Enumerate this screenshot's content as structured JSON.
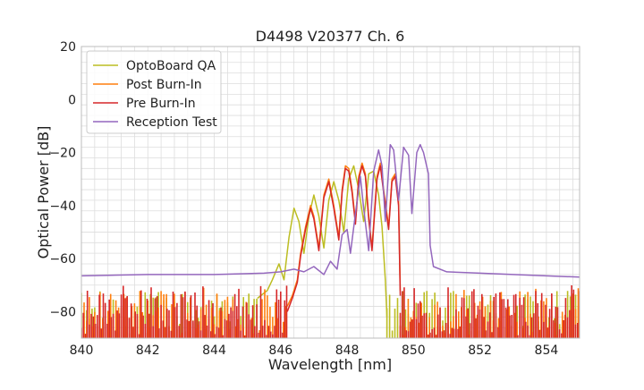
{
  "chart_data": {
    "type": "line",
    "title": "D4498 V20377 Ch. 6",
    "xlabel": "Wavelength [nm]",
    "ylabel": "Optical Power [dB]",
    "xlim": [
      840,
      855
    ],
    "ylim": [
      -90,
      20
    ],
    "grid": true,
    "legend_position": "top-left",
    "x_ticks": [
      840,
      842,
      844,
      846,
      848,
      850,
      852,
      854
    ],
    "x_tick_labels": [
      "840",
      "842",
      "844",
      "846",
      "848",
      "850",
      "852",
      "854"
    ],
    "y_ticks": [
      -80,
      -60,
      -40,
      -20,
      0,
      20
    ],
    "y_tick_labels": [
      "−80",
      "−60",
      "−40",
      "−20",
      "0",
      "20"
    ],
    "x_minor_step": 0.4,
    "y_minor_step": 4,
    "noise_floor_low": -90,
    "series": [
      {
        "name": "OptoBoard QA",
        "color": "#bcbd22",
        "noise": {
          "ranges": [
            [
              840.0,
              845.3
            ],
            [
              849.2,
              855.0
            ]
          ],
          "step": 0.08,
          "min": -89,
          "max": -72
        },
        "x": [
          845.3,
          845.6,
          845.75,
          845.95,
          846.1,
          846.25,
          846.4,
          846.55,
          846.7,
          846.85,
          847.0,
          847.15,
          847.3,
          847.45,
          847.6,
          847.75,
          847.9,
          848.05,
          848.2,
          848.35,
          848.5,
          848.65,
          848.8,
          848.95,
          849.05,
          849.15,
          849.2
        ],
        "values": [
          -75,
          -72,
          -68,
          -62,
          -68,
          -52,
          -41,
          -46,
          -58,
          -44,
          -36,
          -44,
          -56,
          -38,
          -31,
          -38,
          -50,
          -30,
          -25,
          -34,
          -46,
          -28,
          -27,
          -36,
          -48,
          -68,
          -82
        ]
      },
      {
        "name": "Post Burn-In",
        "color": "#ff7f0e",
        "noise": {
          "ranges": [
            [
              840.0,
              846.2
            ],
            [
              849.6,
              855.0
            ]
          ],
          "step": 0.08,
          "min": -89,
          "max": -71
        },
        "x": [
          846.2,
          846.35,
          846.5,
          846.6,
          846.75,
          846.9,
          847.0,
          847.15,
          847.3,
          847.45,
          847.6,
          847.75,
          847.85,
          847.95,
          848.05,
          848.15,
          848.25,
          848.35,
          848.45,
          848.55,
          848.65,
          848.75,
          848.9,
          849.0,
          849.1,
          849.25,
          849.35,
          849.45,
          849.55,
          849.6
        ],
        "values": [
          -78,
          -74,
          -68,
          -58,
          -48,
          -40,
          -44,
          -56,
          -36,
          -30,
          -40,
          -52,
          -34,
          -25,
          -26,
          -34,
          -46,
          -29,
          -24,
          -28,
          -44,
          -56,
          -29,
          -24,
          -34,
          -48,
          -30,
          -28,
          -38,
          -72
        ]
      },
      {
        "name": "Pre Burn-In",
        "color": "#d62728",
        "noise": {
          "ranges": [
            [
              840.0,
              846.2
            ],
            [
              849.6,
              855.0
            ]
          ],
          "step": 0.06,
          "min": -89,
          "max": -70
        },
        "x": [
          846.2,
          846.35,
          846.5,
          846.6,
          846.75,
          846.9,
          847.0,
          847.15,
          847.3,
          847.45,
          847.6,
          847.75,
          847.85,
          847.95,
          848.05,
          848.15,
          848.25,
          848.35,
          848.45,
          848.55,
          848.65,
          848.75,
          848.9,
          849.0,
          849.1,
          849.25,
          849.35,
          849.45,
          849.55,
          849.6
        ],
        "values": [
          -80,
          -75,
          -69,
          -59,
          -49,
          -41,
          -45,
          -57,
          -37,
          -31,
          -41,
          -53,
          -35,
          -26,
          -27,
          -35,
          -47,
          -30,
          -25,
          -29,
          -45,
          -57,
          -30,
          -25,
          -35,
          -49,
          -31,
          -29,
          -40,
          -74
        ]
      },
      {
        "name": "Reception Test",
        "color": "#9467bd",
        "noise": null,
        "x": [
          840.0,
          842.0,
          844.0,
          845.5,
          846.0,
          846.4,
          846.7,
          847.0,
          847.3,
          847.5,
          847.7,
          847.85,
          848.0,
          848.1,
          848.25,
          848.4,
          848.5,
          848.65,
          848.8,
          848.95,
          849.05,
          849.15,
          849.3,
          849.4,
          849.55,
          849.7,
          849.85,
          849.95,
          850.1,
          850.2,
          850.3,
          850.45,
          850.5,
          850.6,
          851.0,
          852.0,
          853.0,
          854.0,
          855.0
        ],
        "values": [
          -66.5,
          -66,
          -66,
          -65.5,
          -65,
          -64,
          -65,
          -63,
          -66,
          -61,
          -64,
          -51,
          -49,
          -58,
          -43,
          -29,
          -41,
          -57,
          -27,
          -19,
          -25,
          -46,
          -17,
          -19,
          -38,
          -18,
          -21,
          -43,
          -20,
          -17,
          -20,
          -28,
          -55,
          -63,
          -65,
          -65.5,
          -66,
          -66.5,
          -67
        ]
      }
    ]
  }
}
